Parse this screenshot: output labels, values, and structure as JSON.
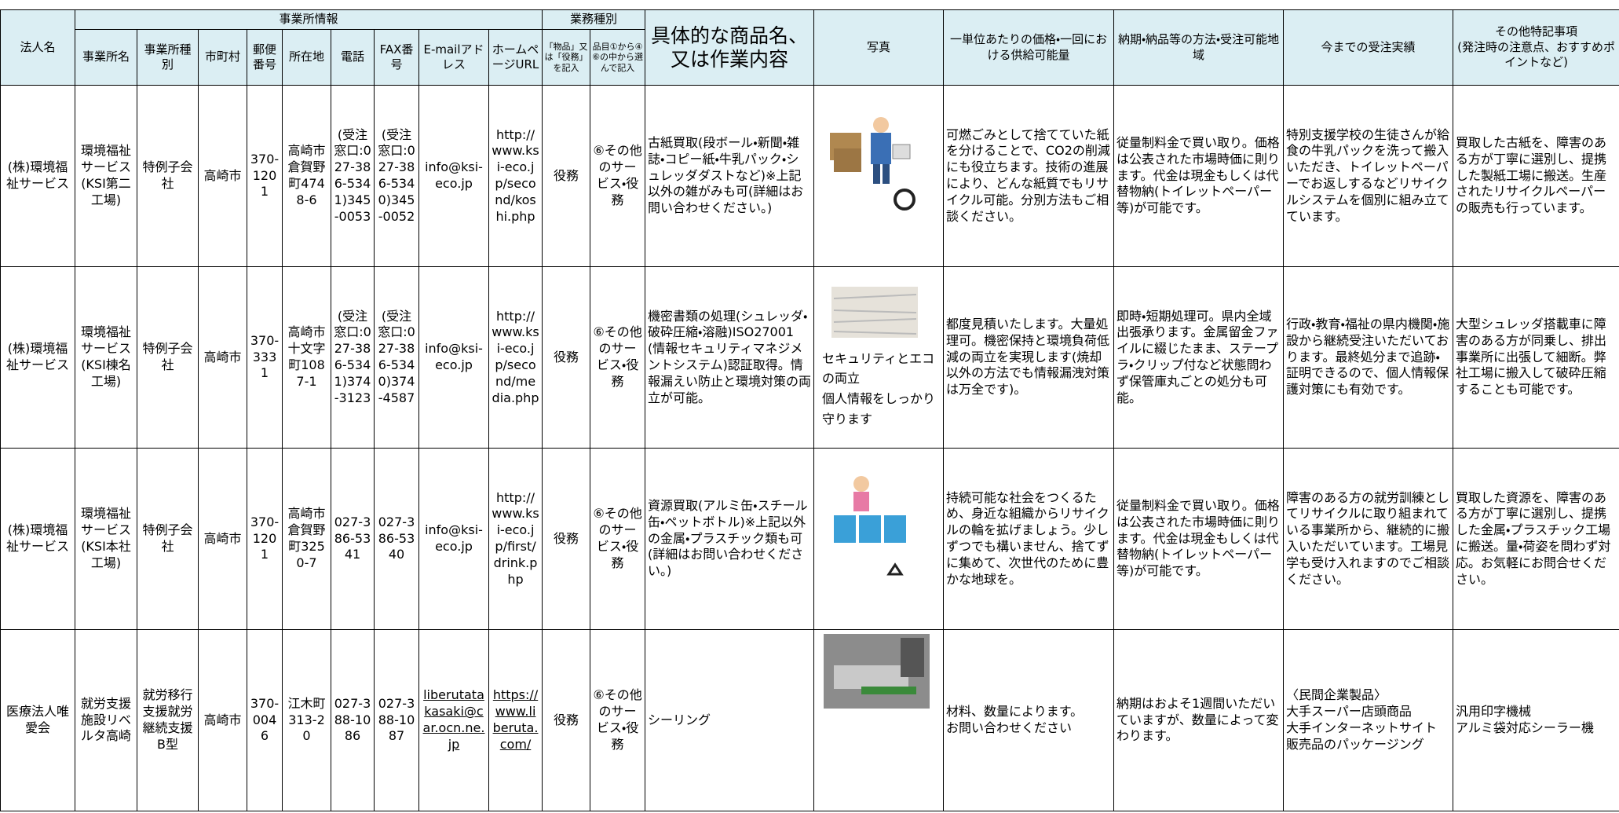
{
  "table": {
    "group_headers": {
      "office_info": "事業所情報",
      "business_type": "業務種別"
    },
    "columns": [
      "法人名",
      "事業所名",
      "事業所種別",
      "市町村",
      "郵便番号",
      "所在地",
      "電話",
      "FAX番号",
      "E-mailアドレス",
      "ホームページURL",
      "「物品」又は「役務」を記入",
      "品目①から④⑥の中から選んで記入",
      "具体的な商品名、又は作業内容",
      "写真",
      "一単位あたりの価格・一回における供給可能量",
      "納期・納品等の方法・受注可能地域",
      "今までの受注実績",
      "その他特記事項\n(発注時の注意点、おすすめポイントなど)"
    ],
    "rows": [
      {
        "cells": [
          "(株)環境福祉サービス",
          "環境福祉サービス(KSI第二工場)",
          "特例子会社",
          "高崎市",
          "370-1201",
          "高崎市倉賀野町4748-6",
          "(受注窓口:027-386-5341)345-0053",
          "(受注窓口:027-386-5340)345-0052",
          "info@ksi-eco.jp",
          "http://www.ksi-eco.jp/second/koshi.php",
          "役務",
          "⑥その他のサービス・役務",
          "古紙買取(段ボール・新聞・雑誌・コピー紙・牛乳パック・シュレッダダストなど)※上記以外の雑がみも可(詳細はお問い合わせください。)",
          "可燃ごみとして捨てていた紙を分けることで、CO2の削減にも役立ちます。技術の進展により、どんな紙質でもリサイクル可能。分別方法もご相談ください。",
          "従量制料金で買い取り。価格は公表された市場時価に則ります。代金は現金もしくは代替物納(トイレットペーパー等)が可能です。",
          "特別支援学校の生徒さんが給食の牛乳パックを洗って搬入いただき、トイレットペーパーでお返しするなどリサイクルシステムを個別に組み立てています。",
          "買取した古紙を、障害のある方が丁寧に選別し、提携した製紙工場に搬送。生産されたリサイクルペーパーの販売も行っています。"
        ]
      },
      {
        "cells": [
          "(株)環境福祉サービス",
          "環境福祉サービス(KSI棟名工場)",
          "特例子会社",
          "高崎市",
          "370-3331",
          "高崎市十文字町1087-1",
          "(受注窓口:027-386-5341)374-3123",
          "(受注窓口:027-386-5340)374-4587",
          "info@ksi-eco.jp",
          "http://www.ksi-eco.jp/second/media.php",
          "役務",
          "⑥その他のサービス・役務",
          "機密書類の処理(シュレッダ・破砕圧縮・溶融)ISO27001(情報セキュリティマネジメントシステム)認証取得。情報漏えい防止と環境対策の両立が可能。",
          "都度見積いたします。大量処理可。機密保持と環境負荷低減の両立を実現します(焼却以外の方法でも情報漏洩対策は万全です)。",
          "即時・短期処理可。県内全域出張承ります。金属留金ファイルに綴じたまま、ステープラ・クリップ付など状態問わず保管庫丸ごとの処分も可能。",
          "行政・教育・福祉の県内機関・施設から継続受注いただいております。最終処分まで追跡・証明できるので、個人情報保護対策にも有効です。",
          "大型シュレッダ搭載車に障害のある方が同乗し、排出事業所に出張して細断。弊社工場に搬入して破砕圧縮することも可能です。"
        ],
        "photo_caption": "セキュリティとエコの両立\n個人情報をしっかり守ります"
      },
      {
        "cells": [
          "(株)環境福祉サービス",
          "環境福祉サービス(KSI本社工場)",
          "特例子会社",
          "高崎市",
          "370-1201",
          "高崎市倉賀野町3250-7",
          "027-386-5341",
          "027-386-5340",
          "info@ksi-eco.jp",
          "http://www.ksi-eco.jp/first/drink.php",
          "役務",
          "⑥その他のサービス・役務",
          "資源買取(アルミ缶・スチール缶・ペットボトル)※上記以外の金属・プラスチック類も可(詳細はお問い合わせください。)",
          "持続可能な社会をつくるため、身近な組織からリサイクルの輪を拡げましょう。少しずつでも構いません、捨てずに集めて、次世代のために豊かな地球を。",
          "従量制料金で買い取り。価格は公表された市場時価に則ります。代金は現金もしくは代替物納(トイレットペーパー等)が可能です。",
          "障害のある方の就労訓練としてリサイクルに取り組まれている事業所から、継続的に搬入いただいています。工場見学も受け入れますのでご相談ください。",
          "買取した資源を、障害のある方が丁寧に選別し、提携した金属・プラスチック工場に搬送。量・荷姿を問わず対応。お気軽にお問合せください。"
        ]
      },
      {
        "cells": [
          "医療法人唯愛会",
          "就労支援施設リベルタ高崎",
          "就労移行支援就労継続支援B型",
          "高崎市",
          "370-0046",
          "江木町313-20",
          "027-388-1086",
          "027-388-1087",
          "liberutatakasaki@car.ocn.ne.jp",
          "https://www.liberuta.com/",
          "役務",
          "⑥その他のサービス・役務",
          "シーリング",
          "材料、数量によります。\nお問い合わせください",
          "納期はおよそ1週間いただいていますが、数量によって変わります。",
          "〈民間企業製品〉\n大手スーパー店頭商品\n大手インターネットサイト\n販売品のパッケージング",
          "汎用印字機械\nアルミ袋対応シーラー機"
        ]
      }
    ]
  }
}
